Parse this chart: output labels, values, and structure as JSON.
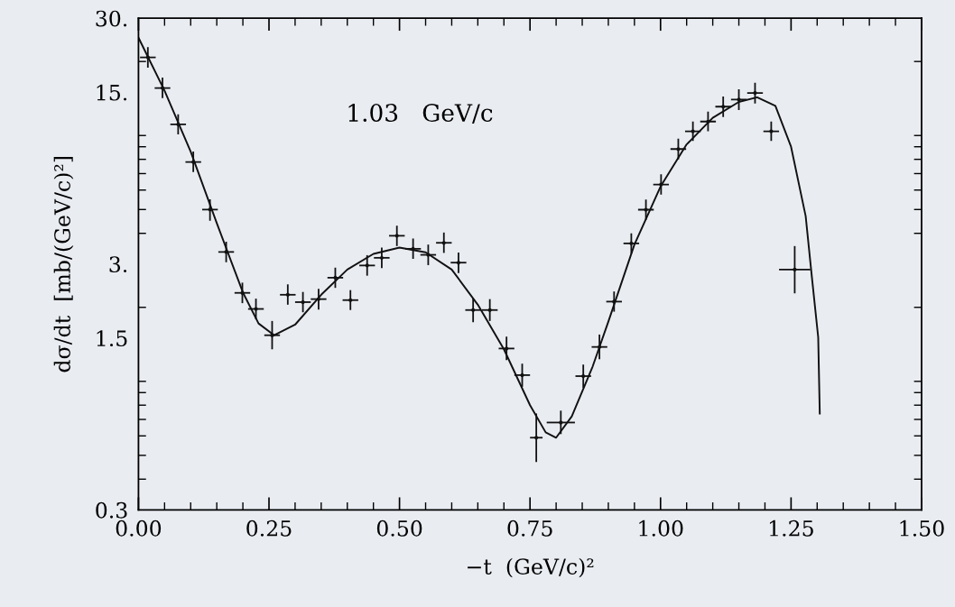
{
  "chart_data": {
    "type": "scatter",
    "xlabel": "−t  (GeV/c)²",
    "ylabel": "dσ/dt  [mb/(GeV/c)²]",
    "annotations": [
      "1.03   GeV/c"
    ],
    "log": "y",
    "xlim": [
      0,
      1.5
    ],
    "ylim": [
      0.3,
      30
    ],
    "xticks": [
      {
        "value": 0,
        "label": "0.00"
      },
      {
        "value": 0.25,
        "label": "0.25"
      },
      {
        "value": 0.5,
        "label": "0.50"
      },
      {
        "value": 0.75,
        "label": "0.75"
      },
      {
        "value": 1.0,
        "label": "1.00"
      },
      {
        "value": 1.25,
        "label": "1.25"
      },
      {
        "value": 1.5,
        "label": "1.50"
      }
    ],
    "yticks": [
      {
        "value": 0.3,
        "label": "0.3"
      },
      {
        "value": 1.5,
        "label": "1.5"
      },
      {
        "value": 3,
        "label": "3."
      },
      {
        "value": 15,
        "label": "15."
      },
      {
        "value": 30,
        "label": "30."
      }
    ],
    "grid": false,
    "series": [
      {
        "color": "#111111",
        "x": [
          0.018,
          0.046,
          0.076,
          0.105,
          0.137,
          0.168,
          0.199,
          0.225,
          0.256,
          0.286,
          0.315,
          0.345,
          0.377,
          0.406,
          0.438,
          0.466,
          0.495,
          0.526,
          0.555,
          0.585,
          0.613,
          0.641,
          0.673,
          0.705,
          0.735,
          0.762,
          0.809,
          0.852,
          0.883,
          0.911,
          0.944,
          0.972,
          1.001,
          1.034,
          1.062,
          1.091,
          1.12,
          1.15,
          1.181,
          1.212,
          1.257
        ],
        "values": [
          20.8,
          15.6,
          11.1,
          7.8,
          5.0,
          3.36,
          2.29,
          1.97,
          1.54,
          2.25,
          2.1,
          2.16,
          2.64,
          2.14,
          2.96,
          3.18,
          3.91,
          3.46,
          3.27,
          3.66,
          3.04,
          1.95,
          1.95,
          1.36,
          1.06,
          0.59,
          0.68,
          1.05,
          1.38,
          2.11,
          3.64,
          4.99,
          6.32,
          8.81,
          10.4,
          11.4,
          13.1,
          14.0,
          14.9,
          10.4,
          2.85
        ],
        "errors": [
          [
            18.9,
            22.9
          ],
          [
            14.2,
            17.2
          ],
          [
            10.1,
            12.2
          ],
          [
            7.1,
            8.6
          ],
          [
            4.5,
            5.5
          ],
          [
            3.05,
            3.7
          ],
          [
            2.08,
            2.52
          ],
          [
            1.79,
            2.17
          ],
          [
            1.35,
            1.76
          ],
          [
            2.05,
            2.48
          ],
          [
            1.91,
            2.31
          ],
          [
            1.96,
            2.38
          ],
          [
            2.4,
            2.9
          ],
          [
            1.95,
            2.35
          ],
          [
            2.69,
            3.26
          ],
          [
            2.89,
            3.5
          ],
          [
            3.55,
            4.3
          ],
          [
            3.15,
            3.81
          ],
          [
            2.97,
            3.6
          ],
          [
            3.33,
            4.03
          ],
          [
            2.76,
            3.34
          ],
          [
            1.74,
            2.18
          ],
          [
            1.76,
            2.16
          ],
          [
            1.22,
            1.52
          ],
          [
            0.95,
            1.18
          ],
          [
            0.47,
            0.74
          ],
          [
            0.61,
            0.76
          ],
          [
            0.94,
            1.17
          ],
          [
            1.23,
            1.55
          ],
          [
            1.92,
            2.32
          ],
          [
            3.31,
            4.0
          ],
          [
            4.54,
            5.49
          ],
          [
            5.75,
            6.95
          ],
          [
            8.0,
            9.7
          ],
          [
            9.5,
            11.4
          ],
          [
            10.4,
            12.5
          ],
          [
            11.9,
            14.4
          ],
          [
            12.7,
            15.4
          ],
          [
            13.5,
            16.4
          ],
          [
            9.5,
            11.4
          ],
          [
            2.28,
            3.55
          ]
        ],
        "xerrors": [
          0.015,
          0.015,
          0.015,
          0.015,
          0.015,
          0.015,
          0.015,
          0.015,
          0.015,
          0.015,
          0.015,
          0.015,
          0.015,
          0.015,
          0.015,
          0.015,
          0.015,
          0.015,
          0.015,
          0.015,
          0.015,
          0.015,
          0.015,
          0.015,
          0.015,
          0.012,
          0.027,
          0.015,
          0.015,
          0.015,
          0.015,
          0.015,
          0.015,
          0.015,
          0.015,
          0.015,
          0.015,
          0.015,
          0.015,
          0.015,
          0.03
        ]
      },
      {
        "type": "line",
        "color": "#111111",
        "line_style": "solid",
        "x": [
          0,
          0.05,
          0.1,
          0.15,
          0.2,
          0.23,
          0.26,
          0.3,
          0.35,
          0.4,
          0.45,
          0.5,
          0.55,
          0.6,
          0.65,
          0.7,
          0.75,
          0.78,
          0.8,
          0.83,
          0.87,
          0.9,
          0.95,
          1.0,
          1.05,
          1.1,
          1.15,
          1.185,
          1.22,
          1.25,
          1.278,
          1.29,
          1.302,
          1.305
        ],
        "values": [
          25.0,
          15.2,
          8.6,
          4.4,
          2.3,
          1.72,
          1.54,
          1.7,
          2.25,
          2.85,
          3.3,
          3.5,
          3.35,
          2.85,
          2.05,
          1.35,
          0.8,
          0.62,
          0.59,
          0.72,
          1.15,
          1.75,
          3.6,
          6.2,
          9.2,
          11.8,
          13.7,
          14.3,
          13.2,
          9.0,
          4.7,
          2.64,
          1.51,
          0.74
        ]
      }
    ]
  }
}
